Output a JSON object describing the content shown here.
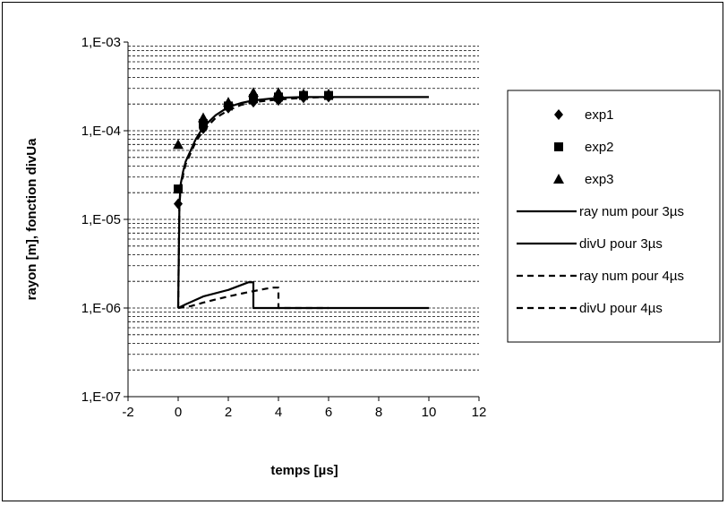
{
  "chart_data": {
    "type": "scatter",
    "xlabel": "temps [µs]",
    "ylabel": "rayon [m], fonction divUa",
    "xlim": [
      -2,
      12
    ],
    "xticks": [
      "-2",
      "0",
      "2",
      "4",
      "6",
      "8",
      "10",
      "12"
    ],
    "ylim": [
      1e-07,
      0.001
    ],
    "yscale": "log",
    "yticks": [
      "1,E-07",
      "1,E-06",
      "1,E-05",
      "1,E-04",
      "1,E-03"
    ],
    "grid": "horizontal minor",
    "legend_position": "right",
    "series": [
      {
        "name": "exp1",
        "kind": "marker",
        "marker": "diamond",
        "x": [
          0,
          1,
          2,
          3,
          4,
          5,
          6
        ],
        "y": [
          1.5e-05,
          0.000105,
          0.00018,
          0.00021,
          0.00022,
          0.000235,
          0.00024
        ]
      },
      {
        "name": "exp2",
        "kind": "marker",
        "marker": "square",
        "x": [
          0,
          1,
          2,
          3,
          4,
          5,
          6
        ],
        "y": [
          2.2e-05,
          0.00012,
          0.00019,
          0.00023,
          0.00024,
          0.00025,
          0.00025
        ]
      },
      {
        "name": "exp3",
        "kind": "marker",
        "marker": "triangle",
        "x": [
          0,
          1,
          2,
          3,
          4,
          5,
          6
        ],
        "y": [
          7e-05,
          0.00014,
          0.00021,
          0.00027,
          0.00027,
          0.00026,
          0.00026
        ]
      },
      {
        "name": "ray num pour 3µs",
        "kind": "line",
        "dash": "solid",
        "x": [
          0,
          0.05,
          0.1,
          0.2,
          0.3,
          0.5,
          0.7,
          1,
          1.5,
          2,
          2.5,
          3,
          4,
          5,
          6,
          8,
          10
        ],
        "y": [
          1e-06,
          1.5e-05,
          2.5e-05,
          3.5e-05,
          4.5e-05,
          6e-05,
          8e-05,
          0.00011,
          0.00015,
          0.000185,
          0.000205,
          0.00022,
          0.000235,
          0.00024,
          0.00024,
          0.00024,
          0.00024
        ]
      },
      {
        "name": "divU pour 3µs",
        "kind": "line",
        "dash": "solid",
        "x": [
          0,
          0.3,
          1,
          2,
          2.8,
          3,
          3,
          5,
          10
        ],
        "y": [
          1e-06,
          1.1e-06,
          1.35e-06,
          1.6e-06,
          1.95e-06,
          1.95e-06,
          1e-06,
          1e-06,
          1e-06
        ]
      },
      {
        "name": "ray num pour 4µs",
        "kind": "line",
        "dash": "dashed",
        "x": [
          0,
          0.05,
          0.1,
          0.2,
          0.3,
          0.5,
          0.7,
          1,
          1.5,
          2,
          2.5,
          3,
          4,
          5,
          6
        ],
        "y": [
          1e-06,
          1.4e-05,
          2.3e-05,
          3.2e-05,
          4.2e-05,
          5.6e-05,
          7.5e-05,
          0.0001,
          0.00014,
          0.00017,
          0.000195,
          0.00021,
          0.000225,
          0.000235,
          0.00024
        ]
      },
      {
        "name": "divU pour 4µs",
        "kind": "line",
        "dash": "dashed",
        "x": [
          0,
          0.5,
          1,
          1.5,
          2,
          2.5,
          3,
          3.5,
          3.8,
          4,
          4,
          5,
          6
        ],
        "y": [
          1e-06,
          1.05e-06,
          1.15e-06,
          1.25e-06,
          1.35e-06,
          1.45e-06,
          1.55e-06,
          1.65e-06,
          1.7e-06,
          1.7e-06,
          1e-06,
          1e-06,
          1e-06
        ]
      }
    ]
  }
}
